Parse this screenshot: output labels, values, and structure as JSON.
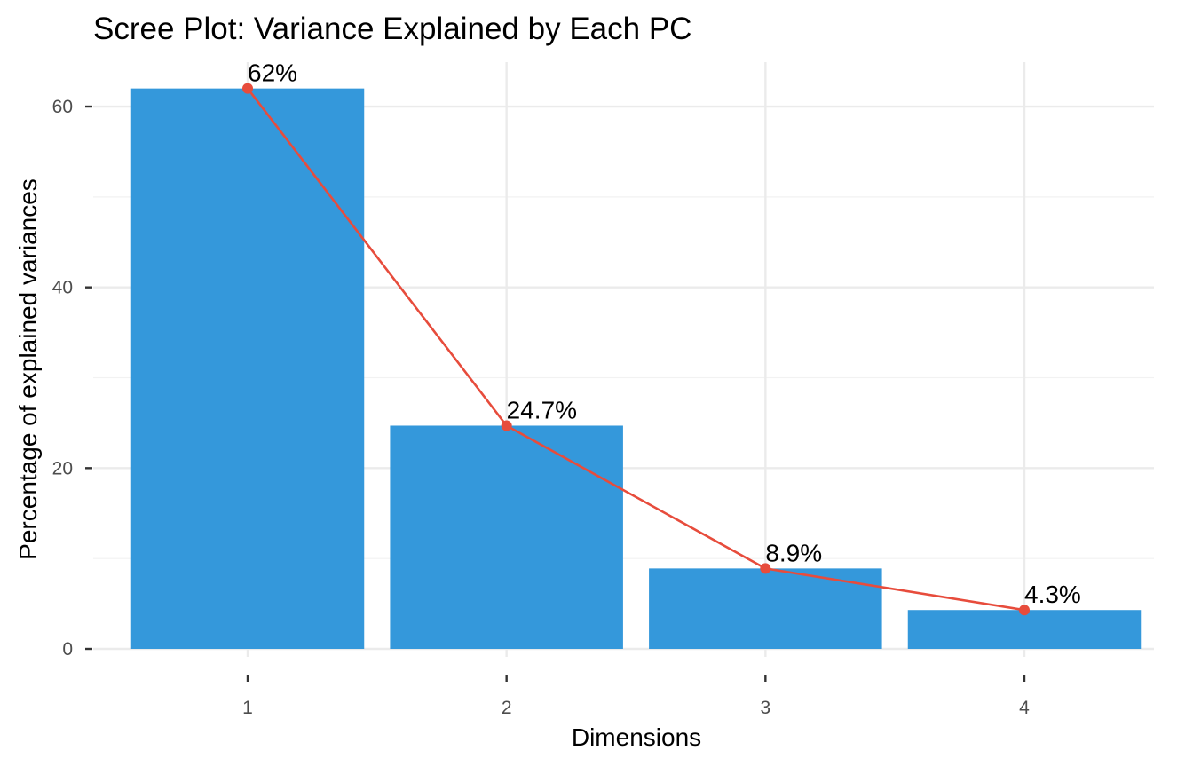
{
  "chart_data": {
    "type": "bar",
    "title": "Scree Plot: Variance Explained by Each PC",
    "xlabel": "Dimensions",
    "ylabel": "Percentage of explained variances",
    "categories": [
      "1",
      "2",
      "3",
      "4"
    ],
    "values": [
      62.0,
      24.7,
      8.9,
      4.3
    ],
    "data_labels": [
      "62%",
      "24.7%",
      "8.9%",
      "4.3%"
    ],
    "y_ticks": [
      0,
      20,
      40,
      60
    ],
    "y_tick_labels": [
      "0",
      "20",
      "40",
      "60"
    ],
    "ylim": [
      0,
      65.1
    ],
    "grid": true,
    "legend": "none",
    "line_overlay": true,
    "colors": {
      "bar": "#3498db",
      "line": "#e74c3c",
      "point": "#e74c3c"
    }
  }
}
